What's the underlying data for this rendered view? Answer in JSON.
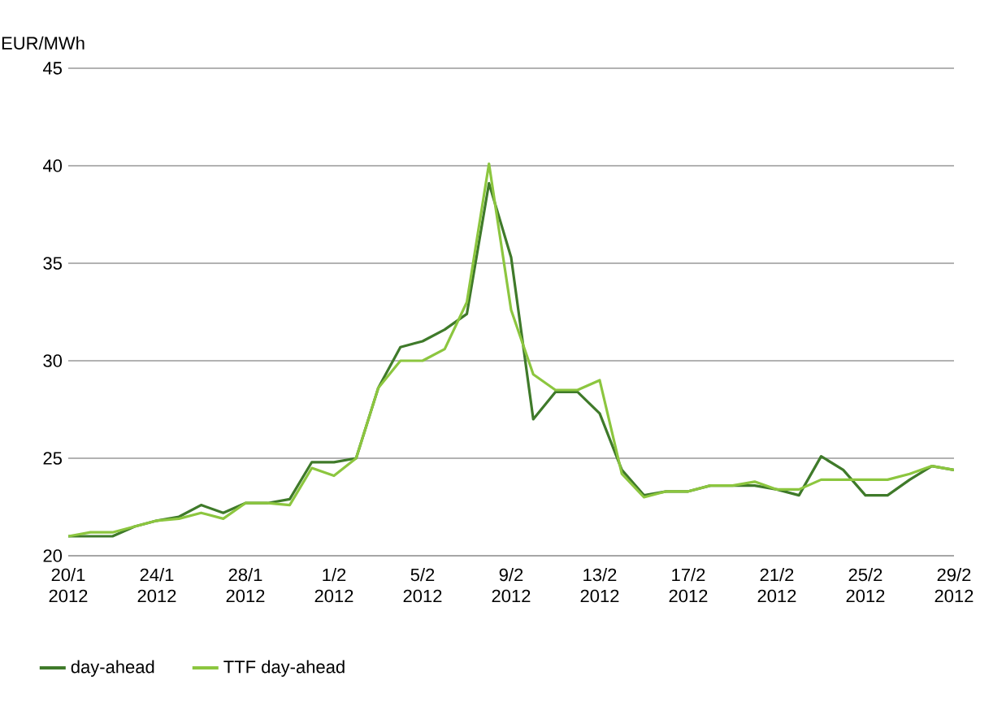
{
  "chart_data": {
    "type": "line",
    "ylabel": "EUR/MWh",
    "x": [
      "2012-01-20",
      "2012-01-21",
      "2012-01-22",
      "2012-01-23",
      "2012-01-24",
      "2012-01-25",
      "2012-01-26",
      "2012-01-27",
      "2012-01-28",
      "2012-01-29",
      "2012-01-30",
      "2012-01-31",
      "2012-02-01",
      "2012-02-02",
      "2012-02-03",
      "2012-02-04",
      "2012-02-05",
      "2012-02-06",
      "2012-02-07",
      "2012-02-08",
      "2012-02-09",
      "2012-02-10",
      "2012-02-11",
      "2012-02-12",
      "2012-02-13",
      "2012-02-14",
      "2012-02-15",
      "2012-02-16",
      "2012-02-17",
      "2012-02-18",
      "2012-02-19",
      "2012-02-20",
      "2012-02-21",
      "2012-02-22",
      "2012-02-23",
      "2012-02-24",
      "2012-02-25",
      "2012-02-26",
      "2012-02-27",
      "2012-02-28",
      "2012-02-29"
    ],
    "series": [
      {
        "name": "day-ahead",
        "color": "#3f7a2a",
        "values": [
          21.0,
          21.0,
          21.0,
          21.5,
          21.8,
          22.0,
          22.6,
          22.2,
          22.7,
          22.7,
          22.9,
          24.8,
          24.8,
          25.0,
          28.6,
          30.7,
          31.0,
          31.6,
          32.4,
          39.1,
          35.3,
          27.0,
          28.4,
          28.4,
          27.3,
          24.4,
          23.1,
          23.3,
          23.3,
          23.6,
          23.6,
          23.6,
          23.4,
          23.1,
          25.1,
          24.4,
          23.1,
          23.1,
          23.9,
          24.6,
          24.4
        ]
      },
      {
        "name": "TTF day-ahead",
        "color": "#8cc63f",
        "values": [
          21.0,
          21.2,
          21.2,
          21.5,
          21.8,
          21.9,
          22.2,
          21.9,
          22.7,
          22.7,
          22.6,
          24.5,
          24.1,
          25.0,
          28.6,
          30.0,
          30.0,
          30.6,
          33.0,
          40.1,
          32.6,
          29.3,
          28.5,
          28.5,
          29.0,
          24.2,
          23.0,
          23.3,
          23.3,
          23.6,
          23.6,
          23.8,
          23.4,
          23.4,
          23.9,
          23.9,
          23.9,
          23.9,
          24.2,
          24.6,
          24.4
        ]
      }
    ],
    "xlim": [
      "2012-01-20",
      "2012-02-29"
    ],
    "xticks": [
      {
        "value": "2012-01-20",
        "label": "20/1 2012"
      },
      {
        "value": "2012-01-24",
        "label": "24/1 2012"
      },
      {
        "value": "2012-01-28",
        "label": "28/1 2012"
      },
      {
        "value": "2012-02-01",
        "label": "1/2 2012"
      },
      {
        "value": "2012-02-05",
        "label": "5/2 2012"
      },
      {
        "value": "2012-02-09",
        "label": "9/2 2012"
      },
      {
        "value": "2012-02-13",
        "label": "13/2 2012"
      },
      {
        "value": "2012-02-17",
        "label": "17/2 2012"
      },
      {
        "value": "2012-02-21",
        "label": "21/2 2012"
      },
      {
        "value": "2012-02-25",
        "label": "25/2 2012"
      },
      {
        "value": "2012-02-29",
        "label": "29/2 2012"
      }
    ],
    "ylim": [
      20,
      45
    ],
    "yticks": [
      20,
      25,
      30,
      35,
      40,
      45
    ],
    "grid": "y",
    "legend": "bottom left",
    "marker": "none",
    "line_style": "solid"
  }
}
